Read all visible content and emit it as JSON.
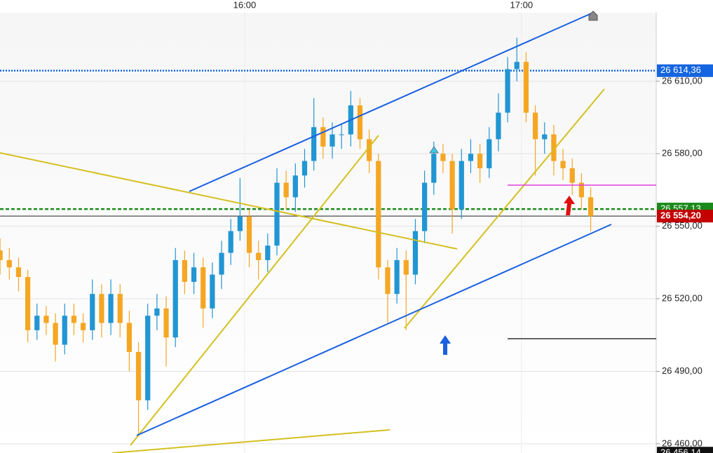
{
  "chart_data": {
    "type": "candlestick",
    "x": [
      907,
      909,
      911,
      913,
      915,
      917,
      919,
      921,
      923,
      925,
      927,
      929,
      931,
      933,
      935,
      937,
      939,
      941,
      943,
      945,
      947,
      949,
      951,
      953,
      955,
      957,
      959,
      961,
      963,
      965,
      967,
      969,
      971,
      973,
      975,
      977,
      979,
      981,
      983,
      985,
      987,
      989,
      991,
      993,
      995,
      997,
      999,
      1001,
      1003,
      1005,
      1007,
      1009,
      1011,
      1013,
      1015,
      1017,
      1019,
      1021,
      1023,
      1025,
      1027,
      1029,
      1031,
      1033,
      1035
    ],
    "open": [
      26540,
      26536,
      26533,
      26529,
      26507,
      26513,
      26510,
      26501,
      26513,
      26510,
      26507,
      26522,
      26510,
      26522,
      26510,
      26498,
      26478,
      26513,
      26516,
      26504,
      26536,
      26527,
      26533,
      26516,
      26530,
      26539,
      26548,
      26554,
      26539,
      26536,
      26542,
      26568,
      26562,
      26571,
      26577,
      26591,
      26583,
      26588,
      26588,
      26600,
      26586,
      26577,
      26533,
      26522,
      26536,
      26530,
      26548,
      26568,
      26580,
      26577,
      26557,
      26577,
      26580,
      26574,
      26586,
      26597,
      26615,
      26618,
      26597,
      26586,
      26588,
      26577,
      26574,
      26568,
      26562
    ],
    "high": [
      26545,
      26541,
      26537,
      26532,
      26518,
      26517,
      26514,
      26518,
      26518,
      26514,
      26528,
      26526,
      26528,
      26526,
      26515,
      26502,
      26518,
      26522,
      26521,
      26541,
      26540,
      26539,
      26537,
      26535,
      26544,
      26553,
      26570,
      26557,
      26544,
      26547,
      26574,
      26573,
      26576,
      26582,
      26603,
      26595,
      26593,
      26592,
      26606,
      26603,
      26590,
      26580,
      26536,
      26541,
      26540,
      26553,
      26573,
      26585,
      26584,
      26580,
      26582,
      26586,
      26584,
      26591,
      26605,
      26620,
      26628,
      26622,
      26600,
      26593,
      26592,
      26582,
      26578,
      26572,
      26566
    ],
    "low": [
      26530,
      26528,
      26523,
      26502,
      26503,
      26505,
      26494,
      26497,
      26505,
      26502,
      26503,
      26504,
      26505,
      26504,
      26490,
      26463,
      26474,
      26507,
      26492,
      26500,
      26522,
      26522,
      26508,
      26512,
      26524,
      26534,
      26544,
      26533,
      26528,
      26531,
      26538,
      26557,
      26556,
      26566,
      26573,
      26578,
      26578,
      26582,
      26583,
      26582,
      26572,
      26528,
      26510,
      26518,
      26507,
      26526,
      26543,
      26563,
      26572,
      26547,
      26553,
      26572,
      26568,
      26570,
      26581,
      26593,
      26610,
      26593,
      26571,
      26580,
      26571,
      26569,
      26563,
      26557,
      26548
    ],
    "close": [
      26536,
      26533,
      26529,
      26507,
      26513,
      26510,
      26501,
      26513,
      26510,
      26507,
      26522,
      26510,
      26522,
      26510,
      26498,
      26478,
      26513,
      26516,
      26504,
      26536,
      26527,
      26533,
      26516,
      26530,
      26539,
      26548,
      26554,
      26539,
      26536,
      26542,
      26568,
      26562,
      26571,
      26577,
      26591,
      26583,
      26588,
      26588,
      26600,
      26586,
      26577,
      26533,
      26522,
      26536,
      26530,
      26548,
      26568,
      26580,
      26577,
      26557,
      26577,
      26580,
      26574,
      26586,
      26597,
      26615,
      26618,
      26597,
      26586,
      26588,
      26577,
      26574,
      26568,
      26562,
      26554.2
    ],
    "up_color": "#2196d3",
    "down_color": "#f5a623",
    "xlim": [
      906.98,
      1049.2
    ],
    "xticks": [
      {
        "value": 960,
        "label": "16:00"
      },
      {
        "value": 1020,
        "label": "17:00"
      }
    ],
    "ylim": [
      26456.2,
      26643.6
    ],
    "yticks": [
      {
        "value": 26460,
        "label": "26 460,00"
      },
      {
        "value": 26490,
        "label": "26 490,00"
      },
      {
        "value": 26520,
        "label": "26 520,00"
      },
      {
        "value": 26550,
        "label": "26 550,00"
      },
      {
        "value": 26580,
        "label": "26 580,00"
      },
      {
        "value": 26610,
        "label": "26 610,00"
      }
    ],
    "grid": true,
    "price_lines": [
      {
        "value": 26614.36,
        "label": "26 614,36",
        "color": "#1565e0"
      },
      {
        "value": 26557.13,
        "label": "26 557,13",
        "color": "#1a8a1a"
      },
      {
        "value": 26554.2,
        "label": "26 554,20",
        "color": "#c40000"
      },
      {
        "value": 26456.14,
        "label": "26 456,14",
        "color": "#111111"
      }
    ]
  }
}
